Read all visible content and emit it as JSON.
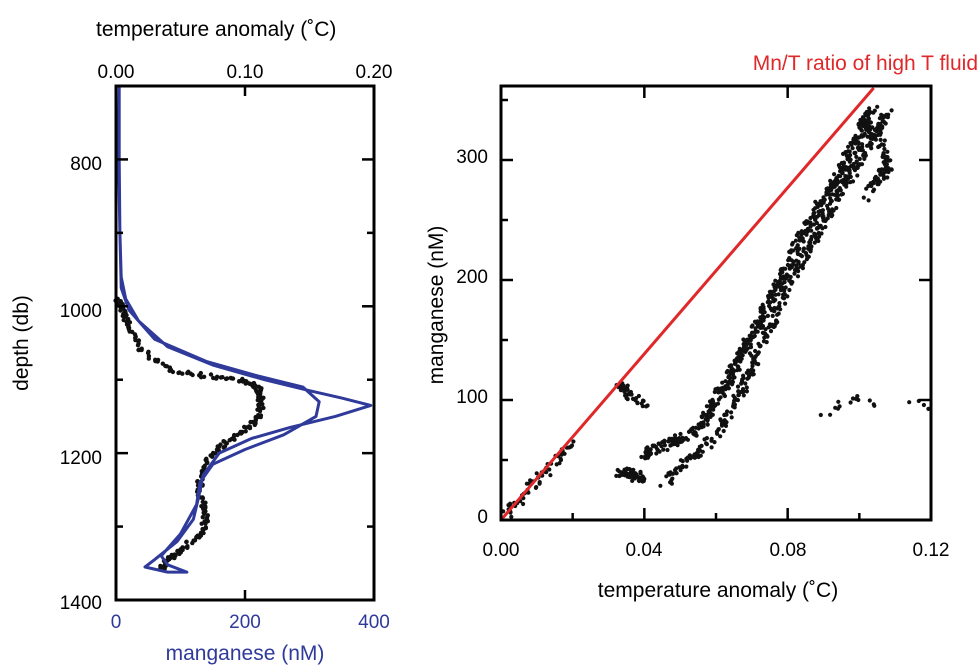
{
  "colors": {
    "profile_line": "#2f3a9a",
    "ratio_line": "#e0282a",
    "points": "#111111",
    "axes": "#000000"
  },
  "chart_data": [
    {
      "type": "line",
      "y_axis": {
        "label": "depth (db)",
        "range": [
          700,
          1400
        ],
        "ticks": [
          800,
          1000,
          1200,
          1400
        ],
        "inverted": true
      },
      "x_axis_top": {
        "label": "temperature anomaly (˚C)",
        "range": [
          0,
          0.2
        ],
        "ticks": [
          0,
          0.1,
          0.2
        ],
        "tick_labels": [
          "0.00",
          "0.10",
          "0.20"
        ]
      },
      "x_axis_bottom": {
        "label": "manganese (nM)",
        "range": [
          0,
          400
        ],
        "ticks": [
          0,
          200,
          400
        ],
        "tick_labels": [
          "0",
          "200",
          "400"
        ]
      },
      "series": [
        {
          "axis": "bottom",
          "points": [
            [
              5,
              700
            ],
            [
              4,
              800
            ],
            [
              6,
              900
            ],
            [
              8,
              960
            ],
            [
              15,
              990
            ],
            [
              35,
              1020
            ],
            [
              80,
              1055
            ],
            [
              150,
              1080
            ],
            [
              230,
              1100
            ],
            [
              300,
              1115
            ],
            [
              350,
              1125
            ],
            [
              395,
              1135
            ],
            [
              340,
              1150
            ],
            [
              270,
              1165
            ],
            [
              210,
              1180
            ],
            [
              160,
              1200
            ],
            [
              135,
              1230
            ],
            [
              128,
              1260
            ],
            [
              120,
              1290
            ],
            [
              95,
              1320
            ],
            [
              60,
              1345
            ],
            [
              45,
              1355
            ],
            [
              80,
              1362
            ],
            [
              110,
              1362
            ],
            [
              80,
              1352
            ],
            [
              70,
              1340
            ],
            [
              100,
              1310
            ],
            [
              125,
              1270
            ],
            [
              130,
              1240
            ],
            [
              150,
              1215
            ],
            [
              200,
              1195
            ],
            [
              260,
              1175
            ],
            [
              310,
              1150
            ],
            [
              315,
              1130
            ],
            [
              290,
              1110
            ],
            [
              220,
              1095
            ],
            [
              140,
              1075
            ],
            [
              60,
              1045
            ],
            [
              20,
              1005
            ],
            [
              8,
              975
            ],
            [
              6,
              900
            ],
            [
              5,
              800
            ],
            [
              5,
              700
            ]
          ]
        },
        {
          "axis": "top",
          "points": [
            [
              0.002,
              990
            ],
            [
              0.006,
              1010
            ],
            [
              0.01,
              1030
            ],
            [
              0.02,
              1060
            ],
            [
              0.04,
              1085
            ],
            [
              0.07,
              1095
            ],
            [
              0.095,
              1100
            ],
            [
              0.11,
              1110
            ],
            [
              0.112,
              1125
            ],
            [
              0.112,
              1145
            ],
            [
              0.105,
              1160
            ],
            [
              0.09,
              1180
            ],
            [
              0.075,
              1200
            ],
            [
              0.065,
              1225
            ],
            [
              0.065,
              1255
            ],
            [
              0.07,
              1280
            ],
            [
              0.068,
              1305
            ],
            [
              0.055,
              1325
            ],
            [
              0.045,
              1340
            ],
            [
              0.038,
              1350
            ],
            [
              0.035,
              1358
            ]
          ]
        }
      ]
    },
    {
      "type": "scatter",
      "annotation": "Mn/T ratio of high T fluid",
      "x_axis": {
        "label": "temperature anomaly (˚C)",
        "range": [
          0,
          0.12
        ],
        "ticks": [
          0,
          0.04,
          0.08,
          0.12
        ],
        "tick_labels": [
          "0.00",
          "0.04",
          "0.08",
          "0.12"
        ]
      },
      "y_axis": {
        "label": "manganese (nM)",
        "range": [
          0,
          360
        ],
        "ticks": [
          0,
          100,
          200,
          300
        ],
        "tick_labels": [
          "0",
          "100",
          "200",
          "300"
        ]
      },
      "ratio_line": [
        [
          0,
          0
        ],
        [
          0.104,
          360
        ]
      ],
      "clusters": [
        {
          "points": [
            [
              0,
              0
            ],
            [
              0.02,
              65
            ]
          ],
          "count": 60
        },
        {
          "points": [
            [
              0.033,
              40
            ],
            [
              0.04,
              35
            ]
          ],
          "count": 50
        },
        {
          "points": [
            [
              0.032,
              115
            ],
            [
              0.04,
              95
            ]
          ],
          "count": 40
        },
        {
          "points": [
            [
              0.04,
              55
            ],
            [
              0.055,
              75
            ],
            [
              0.065,
              125
            ],
            [
              0.075,
              180
            ],
            [
              0.085,
              245
            ],
            [
              0.095,
              290
            ],
            [
              0.104,
              345
            ]
          ],
          "count": 520
        },
        {
          "points": [
            [
              0.045,
              30
            ],
            [
              0.06,
              70
            ],
            [
              0.07,
              125
            ],
            [
              0.08,
              195
            ],
            [
              0.09,
              250
            ],
            [
              0.1,
              300
            ],
            [
              0.108,
              340
            ]
          ],
          "count": 380
        },
        {
          "points": [
            [
              0.1,
              335
            ],
            [
              0.106,
              315
            ],
            [
              0.108,
              295
            ],
            [
              0.102,
              270
            ]
          ],
          "count": 90
        },
        {
          "points": [
            [
              0.09,
              90
            ],
            [
              0.1,
              100
            ],
            [
              0.12,
              95
            ]
          ],
          "count": 18
        }
      ]
    }
  ]
}
